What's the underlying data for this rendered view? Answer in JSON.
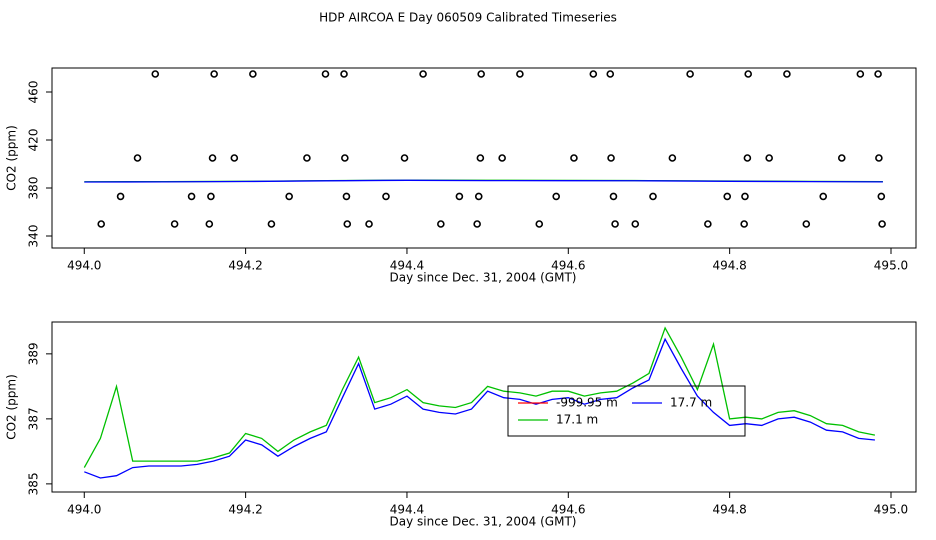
{
  "chart_data": [
    {
      "type": "line",
      "title": "HDP AIRCOA E  Day 060509  Calibrated Timeseries",
      "xlabel": "Day since Dec. 31, 2004 (GMT)",
      "ylabel": "CO2 (ppm)",
      "xlim": [
        493.96,
        495.031
      ],
      "ylim": [
        330,
        480
      ],
      "xticks": [
        {
          "value": 494,
          "label": "494.0"
        },
        494.2,
        494.4,
        494.6,
        494.8,
        {
          "value": 495,
          "label": "495.0"
        }
      ],
      "yticks": [
        340,
        380,
        420,
        460
      ],
      "points": {
        "color": "#000000",
        "x": [
          494.088,
          494.161,
          494.209,
          494.299,
          494.322,
          494.42,
          494.492,
          494.54,
          494.631,
          494.652,
          494.751,
          494.823,
          494.871,
          494.962,
          494.984,
          494.066,
          494.159,
          494.186,
          494.276,
          494.323,
          494.397,
          494.491,
          494.518,
          494.607,
          494.653,
          494.729,
          494.822,
          494.849,
          494.939,
          494.985,
          494.045,
          494.133,
          494.157,
          494.254,
          494.325,
          494.374,
          494.465,
          494.489,
          494.585,
          494.656,
          494.705,
          494.797,
          494.819,
          494.916,
          494.988,
          494.021,
          494.112,
          494.155,
          494.232,
          494.326,
          494.353,
          494.442,
          494.487,
          494.564,
          494.658,
          494.683,
          494.773,
          494.818,
          494.895,
          494.989
        ],
        "values": [
          475,
          475,
          475,
          475,
          475,
          475,
          475,
          475,
          475,
          475,
          475,
          475,
          475,
          475,
          475,
          405,
          405,
          405,
          405,
          405,
          405,
          405,
          405,
          405,
          405,
          405,
          405,
          405,
          405,
          405,
          373,
          373,
          373,
          373,
          373,
          373,
          373,
          373,
          373,
          373,
          373,
          373,
          373,
          373,
          373,
          350,
          350,
          350,
          350,
          350,
          350,
          350,
          350,
          350,
          350,
          350,
          350,
          350,
          350,
          350
        ]
      },
      "x": [
        494.0,
        494.1,
        494.2,
        494.3,
        494.4,
        494.5,
        494.6,
        494.7,
        494.8,
        494.9,
        494.99
      ],
      "series": [
        {
          "color": "#00c000",
          "values": [
            385.2,
            385.3,
            385.6,
            386.2,
            386.6,
            386.4,
            386.3,
            386.2,
            385.8,
            385.5,
            385.3
          ]
        },
        {
          "color": "#0000ff",
          "values": [
            385.0,
            385.1,
            385.4,
            386.0,
            386.4,
            386.2,
            386.1,
            386.0,
            385.6,
            385.3,
            385.1
          ]
        }
      ]
    },
    {
      "type": "line",
      "xlabel": "Day since Dec. 31, 2004 (GMT)",
      "ylabel": "CO2 (ppm)",
      "xlim": [
        493.96,
        495.031
      ],
      "ylim": [
        384.75,
        389.98
      ],
      "xticks": [
        {
          "value": 494,
          "label": "494.0"
        },
        494.2,
        494.4,
        494.6,
        494.8,
        {
          "value": 495,
          "label": "495.0"
        }
      ],
      "yticks": [
        385,
        387,
        389
      ],
      "x": [
        494.0,
        494.02,
        494.04,
        494.06,
        494.08,
        494.1,
        494.12,
        494.14,
        494.16,
        494.18,
        494.2,
        494.22,
        494.24,
        494.26,
        494.28,
        494.3,
        494.32,
        494.34,
        494.36,
        494.38,
        494.4,
        494.42,
        494.44,
        494.46,
        494.48,
        494.5,
        494.52,
        494.54,
        494.56,
        494.58,
        494.6,
        494.62,
        494.64,
        494.66,
        494.68,
        494.7,
        494.72,
        494.74,
        494.76,
        494.78,
        494.8,
        494.82,
        494.84,
        494.86,
        494.88,
        494.9,
        494.92,
        494.94,
        494.96,
        494.98
      ],
      "series": [
        {
          "name": "-999.95 m",
          "color": "#ff0000",
          "values": [
            null,
            null,
            null,
            null,
            null,
            null,
            null,
            null,
            null,
            null,
            null,
            null,
            null,
            null,
            null,
            null,
            null,
            null,
            null,
            null,
            null,
            null,
            null,
            null,
            null,
            null,
            null,
            null,
            null,
            null,
            null,
            null,
            null,
            null,
            null,
            null,
            null,
            null,
            null,
            null,
            null,
            null,
            null,
            null,
            null,
            null,
            null,
            null,
            null,
            null
          ]
        },
        {
          "name": "17.7 m",
          "color": "#0000ff",
          "values": [
            385.37,
            385.18,
            385.25,
            385.5,
            385.55,
            385.55,
            385.55,
            385.6,
            385.7,
            385.85,
            386.35,
            386.2,
            385.85,
            386.15,
            386.4,
            386.6,
            387.65,
            388.7,
            387.3,
            387.45,
            387.7,
            387.3,
            387.2,
            387.15,
            387.3,
            387.85,
            387.65,
            387.6,
            387.45,
            387.6,
            387.65,
            387.45,
            387.6,
            387.65,
            387.95,
            388.2,
            389.45,
            388.55,
            387.7,
            387.2,
            386.8,
            386.85,
            386.8,
            387.0,
            387.05,
            386.9,
            386.65,
            386.6,
            386.4,
            386.35
          ]
        },
        {
          "name": "17.1 m",
          "color": "#00c000",
          "values": [
            385.5,
            386.4,
            388.0,
            385.7,
            385.7,
            385.7,
            385.7,
            385.7,
            385.8,
            385.95,
            386.55,
            386.4,
            386.0,
            386.35,
            386.6,
            386.8,
            387.9,
            388.9,
            387.5,
            387.65,
            387.9,
            387.5,
            387.4,
            387.35,
            387.5,
            388.0,
            387.85,
            387.8,
            387.7,
            387.85,
            387.85,
            387.7,
            387.8,
            387.85,
            388.1,
            388.4,
            389.8,
            388.9,
            387.9,
            389.3,
            387.0,
            387.05,
            387.0,
            387.2,
            387.25,
            387.1,
            386.85,
            386.8,
            386.6,
            386.5
          ]
        }
      ]
    }
  ]
}
